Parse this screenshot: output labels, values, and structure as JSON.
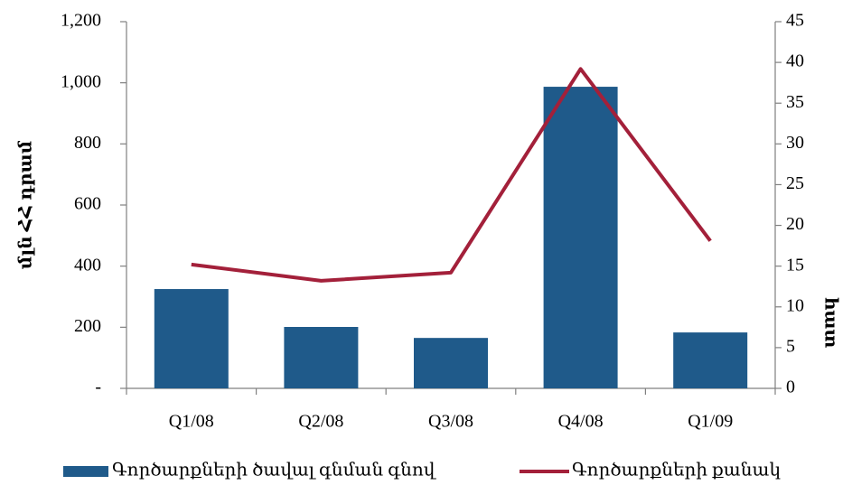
{
  "chart_data": {
    "type": "bar",
    "categories": [
      "Q1/08",
      "Q2/08",
      "Q3/08",
      "Q4/08",
      "Q1/09"
    ],
    "series": [
      {
        "name": "Գործարքների ծավալ գնման գնով",
        "type": "bar",
        "color": "#1f5a8a",
        "axis": "y",
        "values": [
          325,
          201,
          165,
          987,
          183
        ]
      },
      {
        "name": "Գործարքների քանակ",
        "type": "line",
        "color": "#a3203a",
        "axis": "y2",
        "values": [
          15.2,
          13.2,
          14.2,
          39.2,
          18.1
        ]
      }
    ],
    "ylabel": "մլն ՀՀ դրամ",
    "y2label": "հատ",
    "ylim": [
      0,
      1200
    ],
    "yticks": [
      {
        "value": 0,
        "label": "-"
      },
      200,
      400,
      600,
      800,
      {
        "value": 1000,
        "label": "1,000"
      },
      {
        "value": 1200,
        "label": "1,200"
      }
    ],
    "y2lim": [
      0,
      45
    ],
    "y2ticks": [
      0,
      5,
      10,
      15,
      20,
      25,
      30,
      35,
      40,
      45
    ],
    "legend": "bottom",
    "grid": false
  }
}
